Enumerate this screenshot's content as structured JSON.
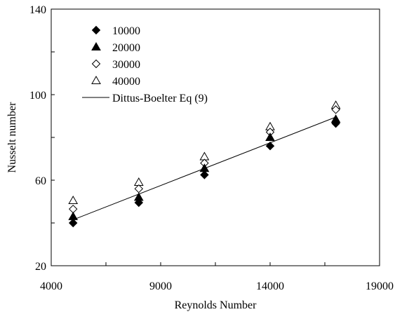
{
  "chart_data": {
    "type": "scatter",
    "xlabel": "Reynolds Number",
    "ylabel": "Nusselt number",
    "xlim": [
      4000,
      19000
    ],
    "ylim": [
      20,
      140
    ],
    "xticks": [
      4000,
      9000,
      14000,
      19000
    ],
    "yticks": [
      20,
      60,
      100,
      140
    ],
    "grid": false,
    "legend_position": "top-left",
    "series": [
      {
        "name": "10000",
        "marker": "filled-diamond",
        "x": [
          5000,
          8000,
          11000,
          14000,
          17000
        ],
        "y": [
          40,
          49.5,
          62.5,
          76,
          86.5
        ]
      },
      {
        "name": "20000",
        "marker": "filled-triangle",
        "x": [
          5000,
          8000,
          11000,
          14000,
          17000
        ],
        "y": [
          43,
          52,
          65.5,
          80,
          88.5
        ]
      },
      {
        "name": "30000",
        "marker": "open-diamond",
        "x": [
          5000,
          8000,
          11000,
          14000,
          17000
        ],
        "y": [
          46.5,
          56,
          68,
          82.5,
          93
        ]
      },
      {
        "name": "40000",
        "marker": "open-triangle",
        "x": [
          5000,
          8000,
          11000,
          14000,
          17000
        ],
        "y": [
          50.5,
          59,
          71,
          85,
          95
        ]
      },
      {
        "name": "Dittus-Boelter Eq (9)",
        "marker": "line",
        "x": [
          5000,
          17000
        ],
        "y": [
          41.5,
          89.5
        ]
      }
    ]
  }
}
